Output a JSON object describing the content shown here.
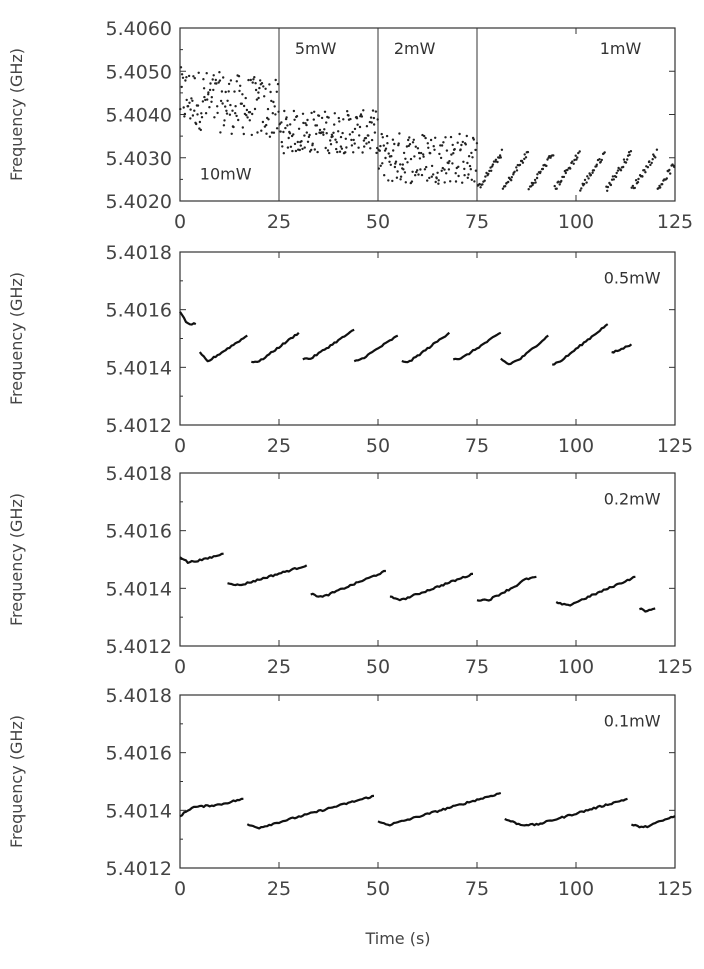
{
  "chart_data": [
    {
      "type": "scatter",
      "xlabel": "",
      "ylabel": "Frequency (GHz)",
      "xlim": [
        0,
        125
      ],
      "ylim": [
        5.402,
        5.406
      ],
      "x_ticks": [
        "0",
        "25",
        "50",
        "75",
        "100",
        "125"
      ],
      "y_ticks": [
        "5.4020",
        "5.4030",
        "5.4040",
        "5.4050",
        "5.4060"
      ],
      "dividers_x": [
        25,
        50,
        75
      ],
      "annotations": [
        {
          "text": "10mW",
          "x": 5,
          "y": 5.4025
        },
        {
          "text": "5mW",
          "x": 29,
          "y": 5.4054
        },
        {
          "text": "2mW",
          "x": 54,
          "y": 5.4054
        },
        {
          "text": "1mW",
          "x": 106,
          "y": 5.4054
        }
      ],
      "series": [
        {
          "segments": [
            {
              "x0": 0,
              "x1": 25,
              "center": 5.4044,
              "spread": 0.0007,
              "density": 6,
              "drift": -0.0003
            },
            {
              "x0": 25,
              "x1": 50,
              "center": 5.4036,
              "spread": 0.0005,
              "density": 6,
              "drift": 0
            },
            {
              "x0": 50,
              "x1": 75,
              "center": 5.403,
              "spread": 0.0006,
              "density": 6,
              "drift": 0
            },
            {
              "x0": 75,
              "x1": 125,
              "center": 5.4025,
              "spread": 0.0004,
              "density": 4,
              "drift": 0
            }
          ]
        }
      ]
    },
    {
      "type": "line",
      "xlabel": "",
      "ylabel": "Frequency (GHz)",
      "xlim": [
        0,
        125
      ],
      "ylim": [
        5.4012,
        5.4018
      ],
      "x_ticks": [
        "0",
        "25",
        "50",
        "75",
        "100",
        "125"
      ],
      "y_ticks": [
        "5.4012",
        "5.4014",
        "5.4016",
        "5.4018"
      ],
      "annotations": [
        {
          "text": "0.5mW",
          "x": 107,
          "y": 5.40169
        }
      ],
      "series": [
        {
          "segments": [
            {
              "x": [
                0,
                2,
                4
              ],
              "y": [
                5.40159,
                5.40155,
                5.40155
              ]
            },
            {
              "x": [
                5,
                7,
                17
              ],
              "y": [
                5.40145,
                5.40142,
                5.40151
              ]
            },
            {
              "x": [
                18,
                20,
                30
              ],
              "y": [
                5.40142,
                5.40142,
                5.40152
              ]
            },
            {
              "x": [
                31,
                33,
                44
              ],
              "y": [
                5.40143,
                5.40143,
                5.40153
              ]
            },
            {
              "x": [
                44,
                46,
                55
              ],
              "y": [
                5.40142,
                5.40143,
                5.40151
              ]
            },
            {
              "x": [
                56,
                58,
                68
              ],
              "y": [
                5.40142,
                5.40142,
                5.40152
              ]
            },
            {
              "x": [
                69,
                71,
                81
              ],
              "y": [
                5.40143,
                5.40143,
                5.40152
              ]
            },
            {
              "x": [
                81,
                83,
                86,
                93
              ],
              "y": [
                5.40143,
                5.40141,
                5.40143,
                5.40151
              ]
            },
            {
              "x": [
                94,
                96,
                108
              ],
              "y": [
                5.40141,
                5.40142,
                5.40155
              ]
            },
            {
              "x": [
                109,
                111,
                114
              ],
              "y": [
                5.40145,
                5.40146,
                5.40148
              ]
            }
          ]
        }
      ]
    },
    {
      "type": "line",
      "xlabel": "",
      "ylabel": "Frequency (GHz)",
      "xlim": [
        0,
        125
      ],
      "ylim": [
        5.4012,
        5.4018
      ],
      "x_ticks": [
        "0",
        "25",
        "50",
        "75",
        "100",
        "125"
      ],
      "y_ticks": [
        "5.4012",
        "5.4014",
        "5.4016",
        "5.4018"
      ],
      "annotations": [
        {
          "text": "0.2mW",
          "x": 107,
          "y": 5.40169
        }
      ],
      "series": [
        {
          "segments": [
            {
              "x": [
                0,
                2,
                6,
                11
              ],
              "y": [
                5.40151,
                5.40149,
                5.4015,
                5.40152
              ]
            },
            {
              "x": [
                12,
                15,
                32
              ],
              "y": [
                5.40142,
                5.40141,
                5.40148
              ]
            },
            {
              "x": [
                33,
                36,
                52
              ],
              "y": [
                5.40138,
                5.40137,
                5.40146
              ]
            },
            {
              "x": [
                53,
                56,
                74
              ],
              "y": [
                5.40137,
                5.40136,
                5.40145
              ]
            },
            {
              "x": [
                75,
                78,
                85,
                87,
                90
              ],
              "y": [
                5.40136,
                5.40136,
                5.40141,
                5.40143,
                5.40144
              ]
            },
            {
              "x": [
                95,
                98,
                115
              ],
              "y": [
                5.40135,
                5.40134,
                5.40144
              ]
            },
            {
              "x": [
                116,
                118,
                120
              ],
              "y": [
                5.40133,
                5.40132,
                5.40133
              ]
            }
          ]
        }
      ]
    },
    {
      "type": "line",
      "xlabel": "Time (s)",
      "ylabel": "Frequency (GHz)",
      "xlim": [
        0,
        125
      ],
      "ylim": [
        5.4012,
        5.4018
      ],
      "x_ticks": [
        "0",
        "25",
        "50",
        "75",
        "100",
        "125"
      ],
      "y_ticks": [
        "5.4012",
        "5.4014",
        "5.4016",
        "5.4018"
      ],
      "annotations": [
        {
          "text": "0.1mW",
          "x": 107,
          "y": 5.40169
        }
      ],
      "series": [
        {
          "segments": [
            {
              "x": [
                0,
                3,
                10,
                16
              ],
              "y": [
                5.40138,
                5.40141,
                5.40142,
                5.40144
              ]
            },
            {
              "x": [
                17,
                20,
                49
              ],
              "y": [
                5.40135,
                5.40134,
                5.40145
              ]
            },
            {
              "x": [
                50,
                53,
                81
              ],
              "y": [
                5.40136,
                5.40135,
                5.40146
              ]
            },
            {
              "x": [
                82,
                86,
                90,
                113
              ],
              "y": [
                5.40137,
                5.40135,
                5.40135,
                5.40144
              ]
            },
            {
              "x": [
                114,
                117,
                125
              ],
              "y": [
                5.40135,
                5.40134,
                5.40138
              ]
            }
          ]
        }
      ]
    }
  ]
}
